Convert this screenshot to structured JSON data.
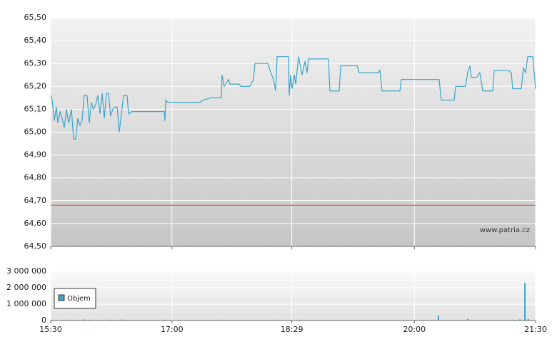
{
  "chart_data": [
    {
      "type": "line",
      "annotation": "www.patria.cz",
      "xlim": [
        930,
        1290
      ],
      "xticks": [
        930,
        1020,
        1109,
        1200,
        1290
      ],
      "ylim": [
        64.5,
        65.5
      ],
      "yticks": [
        {
          "value": 64.5,
          "label": "64,50"
        },
        {
          "value": 64.6,
          "label": "64,60"
        },
        {
          "value": 64.7,
          "label": "64,70"
        },
        {
          "value": 64.8,
          "label": "64,80"
        },
        {
          "value": 64.9,
          "label": "64,90"
        },
        {
          "value": 65.0,
          "label": "65,00"
        },
        {
          "value": 65.1,
          "label": "65,10"
        },
        {
          "value": 65.2,
          "label": "65,20"
        },
        {
          "value": 65.3,
          "label": "65,30"
        },
        {
          "value": 65.4,
          "label": "65,40"
        },
        {
          "value": 65.5,
          "label": "65,50"
        }
      ],
      "grid": true,
      "reference_line": {
        "value": 64.68,
        "color": "#e06060"
      },
      "x": [
        930,
        931.1,
        932.7,
        934.2,
        935.3,
        936.9,
        938.5,
        940.1,
        941.7,
        943.3,
        945.4,
        947.0,
        948.6,
        950.1,
        951.7,
        953.3,
        954.9,
        957.0,
        958.6,
        960.2,
        961.8,
        963.4,
        965.0,
        966.6,
        968.2,
        969.8,
        971.4,
        972.9,
        974.5,
        976.1,
        977.7,
        979.3,
        980.9,
        982.5,
        984.1,
        986.7,
        987.8,
        990.4,
        1014.3,
        1014.8,
        1015.4,
        1017.0,
        1040.8,
        1043.5,
        1048.8,
        1056.7,
        1057.2,
        1058.8,
        1062.0,
        1063.1,
        1070.0,
        1071.0,
        1077.9,
        1080.6,
        1081.6,
        1091.2,
        1092.8,
        1095.4,
        1097.0,
        1098.1,
        1106.6,
        1107.1,
        1108.1,
        1109.2,
        1110.8,
        1111.9,
        1114.0,
        1116.6,
        1118.8,
        1120.3,
        1121.4,
        1136.2,
        1137.3,
        1144.2,
        1145.3,
        1157.5,
        1159.0,
        1173.4,
        1174.4,
        1176.0,
        1189.3,
        1190.3,
        1218.4,
        1220.0,
        1229.6,
        1230.6,
        1238.0,
        1239.6,
        1241.2,
        1242.3,
        1246.5,
        1248.6,
        1250.8,
        1258.2,
        1259.3,
        1269.9,
        1272.0,
        1273.0,
        1279.4,
        1281.0,
        1282.6,
        1284.2,
        1287.9,
        1290.0
      ],
      "series": [
        {
          "color": "#3aa5c9",
          "values": [
            65.16,
            65.14,
            65.05,
            65.11,
            65.04,
            65.09,
            65.06,
            65.02,
            65.1,
            65.04,
            65.1,
            64.97,
            64.97,
            65.06,
            65.03,
            65.05,
            65.16,
            65.16,
            65.04,
            65.13,
            65.1,
            65.12,
            65.16,
            65.08,
            65.17,
            65.06,
            65.17,
            65.17,
            65.07,
            65.1,
            65.11,
            65.11,
            65.0,
            65.08,
            65.16,
            65.16,
            65.08,
            65.09,
            65.09,
            65.05,
            65.14,
            65.13,
            65.13,
            65.14,
            65.15,
            65.15,
            65.25,
            65.2,
            65.23,
            65.21,
            65.21,
            65.2,
            65.2,
            65.23,
            65.3,
            65.3,
            65.27,
            65.23,
            65.18,
            65.33,
            65.33,
            65.16,
            65.25,
            65.19,
            65.25,
            65.21,
            65.33,
            65.25,
            65.31,
            65.26,
            65.32,
            65.32,
            65.18,
            65.18,
            65.29,
            65.29,
            65.26,
            65.26,
            65.27,
            65.18,
            65.18,
            65.23,
            65.23,
            65.14,
            65.14,
            65.2,
            65.2,
            65.26,
            65.29,
            65.24,
            65.24,
            65.26,
            65.18,
            65.18,
            65.27,
            65.27,
            65.26,
            65.19,
            65.19,
            65.28,
            65.26,
            65.33,
            65.33,
            65.19
          ]
        }
      ]
    },
    {
      "type": "bar",
      "xlim": [
        930,
        1290
      ],
      "xticks": [
        {
          "value": 930,
          "label": "15:30"
        },
        {
          "value": 1020,
          "label": "17:00"
        },
        {
          "value": 1109,
          "label": "18:29"
        },
        {
          "value": 1200,
          "label": "20:00"
        },
        {
          "value": 1290,
          "label": "21:30"
        }
      ],
      "ylim": [
        0,
        3000000
      ],
      "yticks": [
        {
          "value": 0,
          "label": "0"
        },
        {
          "value": 1000000,
          "label": "1 000 000"
        },
        {
          "value": 2000000,
          "label": "2 000 000"
        },
        {
          "value": 3000000,
          "label": "3 000 000"
        }
      ],
      "grid": true,
      "x": [
        930.5,
        940.1,
        954.9,
        958.6,
        974.5,
        982.5,
        985.1,
        1014.3,
        1048.8,
        1056.7,
        1096.5,
        1115.0,
        1137.3,
        1178.7,
        1217.9,
        1239.6,
        1274.1,
        1278.3,
        1282.1,
        1284.7
      ],
      "series": [
        {
          "name": "Objem",
          "color": "#3aa5c9",
          "values": [
            50000,
            40000,
            60000,
            40000,
            50000,
            60000,
            50000,
            40000,
            30000,
            40000,
            40000,
            40000,
            30000,
            30000,
            300000,
            100000,
            40000,
            60000,
            2300000,
            80000
          ]
        }
      ]
    }
  ]
}
